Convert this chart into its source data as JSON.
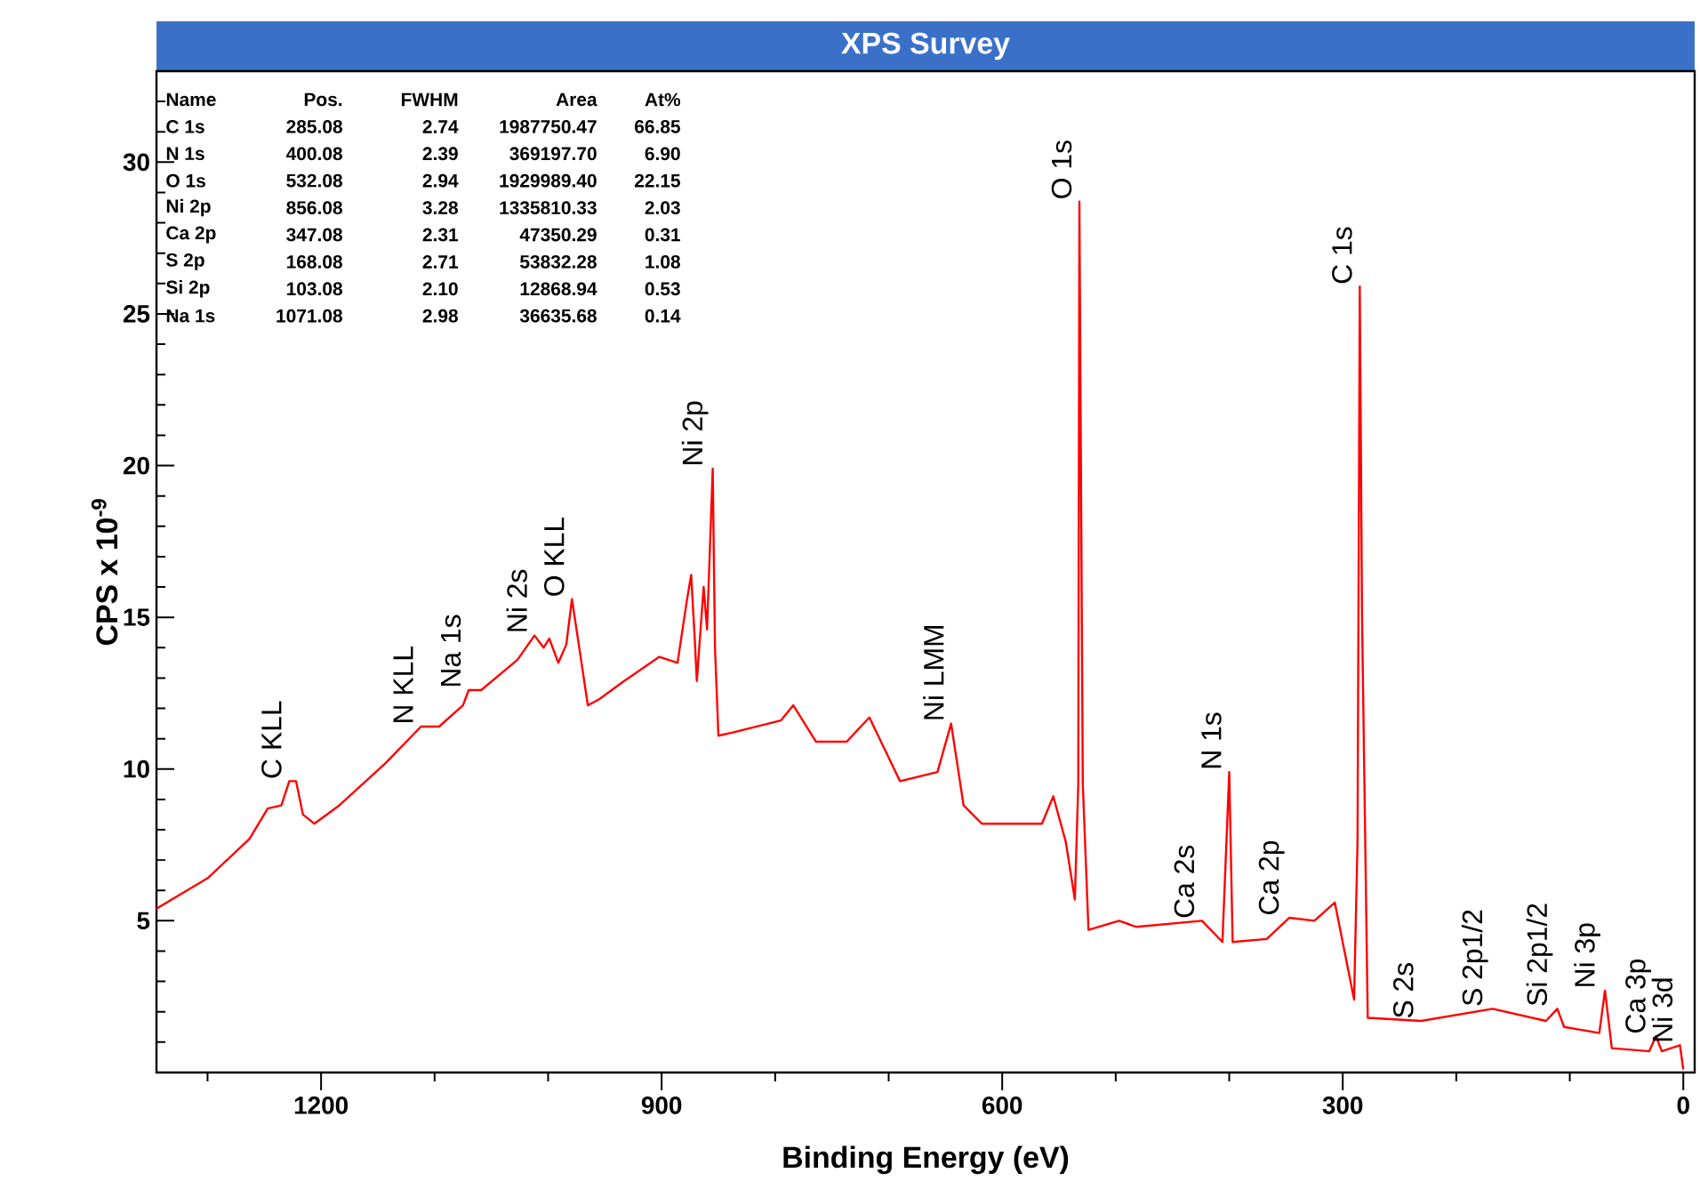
{
  "chart_data": {
    "type": "line",
    "title": "XPS Survey",
    "xlabel": "Binding Energy (eV)",
    "ylabel": "CPS x 10$^{-9}$",
    "color": "#ff0000",
    "marker": "none",
    "line_style": "solid",
    "x": [
      1345,
      1300,
      1263,
      1247,
      1235,
      1228,
      1222,
      1216,
      1206,
      1184,
      1143,
      1112,
      1096,
      1075,
      1070,
      1059,
      1027,
      1012,
      1004,
      999,
      991,
      984,
      979,
      971,
      965,
      955,
      933,
      902,
      886,
      878,
      874,
      871,
      869,
      863,
      860,
      855,
      853,
      850,
      838,
      795,
      784,
      764,
      737,
      717,
      690,
      657,
      645,
      634,
      618,
      565,
      555,
      544,
      536,
      533,
      532,
      529,
      524,
      497,
      482,
      424,
      406,
      400,
      397,
      367,
      347,
      325,
      307,
      290,
      287,
      285,
      283,
      278,
      231,
      168,
      121,
      111,
      105,
      74,
      69,
      63,
      30,
      24,
      19,
      3,
      0
    ],
    "values": [
      5.4,
      6.4,
      7.7,
      8.7,
      8.8,
      9.6,
      9.6,
      8.5,
      8.2,
      8.8,
      10.2,
      11.4,
      11.4,
      12.1,
      12.6,
      12.6,
      13.6,
      14.4,
      14.0,
      14.3,
      13.5,
      14.1,
      15.6,
      13.6,
      12.1,
      12.3,
      12.9,
      13.7,
      13.5,
      15.5,
      16.4,
      14.4,
      12.9,
      16.0,
      14.6,
      19.9,
      14.0,
      11.1,
      11.2,
      11.6,
      12.1,
      10.9,
      10.9,
      11.7,
      9.6,
      9.9,
      11.5,
      8.8,
      8.2,
      8.2,
      9.1,
      7.6,
      5.7,
      9.5,
      28.7,
      9.5,
      4.7,
      5.0,
      4.8,
      5.0,
      4.3,
      9.9,
      4.3,
      4.4,
      5.1,
      5.0,
      5.6,
      2.4,
      7.6,
      25.9,
      15.0,
      1.8,
      1.7,
      2.1,
      1.7,
      2.1,
      1.5,
      1.3,
      2.7,
      0.8,
      0.7,
      1.2,
      0.7,
      0.9,
      0.1
    ],
    "xlim": [
      1345,
      -10
    ],
    "ylim": [
      0,
      33
    ],
    "xticks": [
      0,
      300,
      600,
      900,
      1200,
      {
        "value": 100,
        "label": null
      },
      {
        "value": 200,
        "label": null
      },
      {
        "value": 400,
        "label": null
      },
      {
        "value": 500,
        "label": null
      },
      {
        "value": 700,
        "label": null
      },
      {
        "value": 800,
        "label": null
      },
      {
        "value": 1000,
        "label": null
      },
      {
        "value": 1100,
        "label": null
      },
      {
        "value": 1300,
        "label": null
      }
    ],
    "yticks": [
      5,
      10,
      15,
      20,
      25,
      30,
      {
        "value": 1,
        "label": null
      },
      {
        "value": 2,
        "label": null
      },
      {
        "value": 3,
        "label": null
      },
      {
        "value": 4,
        "label": null
      },
      {
        "value": 6,
        "label": null
      },
      {
        "value": 7,
        "label": null
      },
      {
        "value": 8,
        "label": null
      },
      {
        "value": 9,
        "label": null
      },
      {
        "value": 11,
        "label": null
      },
      {
        "value": 12,
        "label": null
      },
      {
        "value": 13,
        "label": null
      },
      {
        "value": 14,
        "label": null
      },
      {
        "value": 16,
        "label": null
      },
      {
        "value": 17,
        "label": null
      },
      {
        "value": 18,
        "label": null
      },
      {
        "value": 19,
        "label": null
      },
      {
        "value": 21,
        "label": null
      },
      {
        "value": 22,
        "label": null
      },
      {
        "value": 23,
        "label": null
      },
      {
        "value": 24,
        "label": null
      },
      {
        "value": 26,
        "label": null
      },
      {
        "value": 27,
        "label": null
      },
      {
        "value": 28,
        "label": null
      },
      {
        "value": 29,
        "label": null
      },
      {
        "value": 31,
        "label": null
      },
      {
        "value": 32,
        "label": null
      }
    ],
    "annotations": [
      {
        "text": "C KLL",
        "x": 1228,
        "y": 9.6
      },
      {
        "text": "N KLL",
        "x": 1112,
        "y": 11.4
      },
      {
        "text": "Na 1s",
        "x": 1070,
        "y": 12.6
      },
      {
        "text": "Ni 2s",
        "x": 1012,
        "y": 14.4
      },
      {
        "text": "O KLL",
        "x": 979,
        "y": 15.6
      },
      {
        "text": "Ni 2p",
        "x": 855,
        "y": 19.9
      },
      {
        "text": "Ni LMM",
        "x": 645,
        "y": 11.5
      },
      {
        "text": "O 1s",
        "x": 532,
        "y": 28.7
      },
      {
        "text": "C 1s",
        "x": 285,
        "y": 25.9
      },
      {
        "text": "N 1s",
        "x": 400,
        "y": 9.9
      },
      {
        "text": "Ca 2s",
        "x": 424,
        "y": 5.0
      },
      {
        "text": "Ca 2p",
        "x": 347,
        "y": 5.1
      },
      {
        "text": "S 2s",
        "x": 231,
        "y": 1.7
      },
      {
        "text": "S 2p1/2",
        "x": 168,
        "y": 2.1
      },
      {
        "text": "Si 2p1/2",
        "x": 111,
        "y": 2.1
      },
      {
        "text": "Ni 3p",
        "x": 69,
        "y": 2.7
      },
      {
        "text": "Ca 3p",
        "x": 24,
        "y": 1.2
      },
      {
        "text": "Ni 3d",
        "x": 3,
        "y": 0.9
      },
      "Name",
      "Pos.",
      "FWHM",
      "Area",
      "At%",
      "C 1s",
      "285.08",
      "2.74",
      "1987750.47",
      "66.85",
      "N 1s",
      "400.08",
      "2.39",
      "369197.70",
      "6.90",
      "O 1s",
      "532.08",
      "2.94",
      "1929989.40",
      "22.15",
      "Ni 2p",
      "856.08",
      "3.28",
      "1335810.33",
      "2.03",
      "Ca 2p",
      "347.08",
      "2.31",
      "47350.29",
      "0.31",
      "S 2p",
      "168.08",
      "2.71",
      "53832.28",
      "1.08",
      "Si 2p",
      "103.08",
      "2.10",
      "12868.94",
      "0.53",
      "Na 1s",
      "1071.08",
      "2.98",
      "36635.68",
      "0.14"
    ]
  }
}
